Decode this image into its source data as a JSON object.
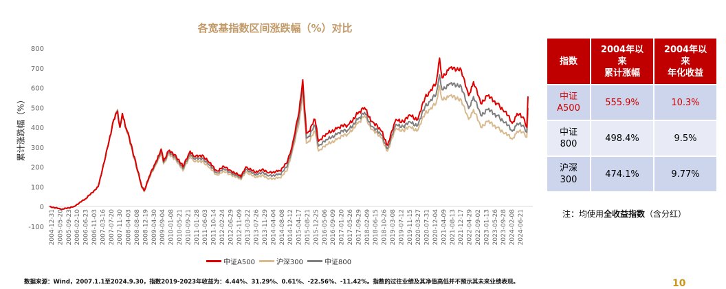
{
  "chart_data": {
    "type": "line",
    "title": "各宽基指数区间涨跌幅（%）对比",
    "ylabel": "累计涨跌幅（%）",
    "xlabel": "",
    "ylim": [
      -100,
      800
    ],
    "yticks": [
      -100,
      0,
      100,
      200,
      300,
      400,
      500,
      600,
      700,
      800
    ],
    "xlim": [
      2004.99,
      2024.75
    ],
    "xtick_labels": [
      "2004-12-31",
      "2005-05-20",
      "2005-09-23",
      "2006-02-10",
      "2006-06-23",
      "2006-11-03",
      "2007-03-16",
      "2007-07-20",
      "2007-11-30",
      "2008-04-03",
      "2008-08-08",
      "2008-12-19",
      "2009-04-30",
      "2009-09-04",
      "2010-01-08",
      "2010-05-21",
      "2010-09-21",
      "2011-01-28",
      "2011-06-03",
      "2011-10-14",
      "2012-02-24",
      "2012-06-29",
      "2012-11-09",
      "2013-03-22",
      "2013-07-26",
      "2013-11-29",
      "2014-04-04",
      "2014-08-08",
      "2014-12-12",
      "2015-04-17",
      "2015-08-21",
      "2015-12-25",
      "2016-05-06",
      "2016-09-09",
      "2017-01-20",
      "2017-05-26",
      "2017-09-29",
      "2018-02-09",
      "2018-06-15",
      "2018-10-26",
      "2019-03-08",
      "2019-07-12",
      "2019-11-15",
      "2020-03-27",
      "2020-07-31",
      "2020-12-04",
      "2021-04-09",
      "2021-08-13",
      "2021-12-17",
      "2022-04-29",
      "2022-09-02",
      "2023-01-13",
      "2023-05-26",
      "2023-09-28",
      "2024-02-08",
      "2024-06-21"
    ],
    "x": [
      2004.99,
      2005.5,
      2006.0,
      2006.5,
      2007.0,
      2007.3,
      2007.45,
      2007.6,
      2007.8,
      2007.9,
      2008.0,
      2008.2,
      2008.5,
      2008.8,
      2008.9,
      2009.1,
      2009.4,
      2009.6,
      2009.7,
      2009.9,
      2010.2,
      2010.5,
      2010.8,
      2011.0,
      2011.3,
      2011.6,
      2011.9,
      2012.2,
      2012.5,
      2012.9,
      2013.1,
      2013.5,
      2013.8,
      2014.0,
      2014.5,
      2014.8,
      2015.0,
      2015.3,
      2015.45,
      2015.6,
      2015.7,
      2015.95,
      2016.1,
      2016.5,
      2016.9,
      2017.3,
      2017.8,
      2018.0,
      2018.3,
      2018.7,
      2018.95,
      2019.3,
      2019.6,
      2019.9,
      2020.2,
      2020.5,
      2020.7,
      2020.95,
      2021.1,
      2021.2,
      2021.5,
      2021.8,
      2021.95,
      2022.3,
      2022.5,
      2022.8,
      2023.05,
      2023.5,
      2023.8,
      2024.1,
      2024.3,
      2024.6,
      2024.7,
      2024.75
    ],
    "series": [
      {
        "name": "中证A500",
        "color": "#e00000",
        "values": [
          0,
          -15,
          0,
          40,
          100,
          250,
          330,
          420,
          480,
          400,
          470,
          380,
          250,
          100,
          80,
          150,
          230,
          290,
          230,
          280,
          260,
          200,
          280,
          250,
          260,
          220,
          180,
          200,
          180,
          150,
          200,
          170,
          190,
          170,
          180,
          220,
          300,
          480,
          640,
          370,
          380,
          440,
          330,
          370,
          400,
          410,
          480,
          500,
          430,
          380,
          310,
          440,
          430,
          460,
          440,
          550,
          580,
          620,
          750,
          650,
          700,
          690,
          700,
          560,
          630,
          520,
          560,
          520,
          480,
          420,
          470,
          440,
          400,
          556
        ]
      },
      {
        "name": "沪深300",
        "color": "#d9b98e",
        "values": [
          0,
          -15,
          0,
          40,
          100,
          250,
          330,
          420,
          490,
          400,
          470,
          370,
          240,
          95,
          75,
          140,
          215,
          270,
          215,
          260,
          240,
          180,
          255,
          225,
          230,
          195,
          160,
          175,
          160,
          135,
          175,
          145,
          160,
          140,
          145,
          180,
          270,
          420,
          570,
          320,
          330,
          380,
          280,
          315,
          345,
          365,
          430,
          460,
          390,
          345,
          280,
          395,
          385,
          400,
          385,
          470,
          490,
          520,
          610,
          540,
          560,
          545,
          545,
          440,
          490,
          400,
          430,
          400,
          370,
          340,
          380,
          370,
          350,
          474
        ]
      },
      {
        "name": "中证800",
        "color": "#7f7f7f",
        "values": [
          0,
          -15,
          0,
          40,
          100,
          250,
          330,
          420,
          485,
          400,
          470,
          375,
          245,
          98,
          78,
          145,
          222,
          280,
          222,
          270,
          250,
          190,
          268,
          238,
          245,
          208,
          170,
          188,
          170,
          142,
          188,
          158,
          175,
          155,
          162,
          200,
          285,
          450,
          610,
          345,
          355,
          410,
          305,
          340,
          372,
          385,
          450,
          475,
          405,
          360,
          292,
          415,
          405,
          425,
          410,
          505,
          530,
          565,
          665,
          590,
          620,
          610,
          615,
          495,
          555,
          460,
          490,
          460,
          425,
          380,
          420,
          400,
          375,
          498
        ]
      }
    ],
    "legend": "bottom",
    "grid": false
  },
  "table": {
    "headers": [
      "指数",
      "2004年以来累计涨幅",
      "2004年以来年化收益"
    ],
    "header_lines": [
      [
        "指数"
      ],
      [
        "2004年以",
        "来",
        "累计涨幅"
      ],
      [
        "2004年以",
        "来",
        "年化收益"
      ]
    ],
    "rows": [
      {
        "name_lines": [
          "中证",
          "A500"
        ],
        "cumulative": "555.9%",
        "annualized": "10.3%"
      },
      {
        "name_lines": [
          "中证",
          "800"
        ],
        "cumulative": "498.4%",
        "annualized": "9.5%"
      },
      {
        "name_lines": [
          "沪深",
          "300"
        ],
        "cumulative": "474.1%",
        "annualized": "9.77%"
      }
    ]
  },
  "note": {
    "prefix": "注：均使用",
    "bold": "全收益指数",
    "suffix": "（含分红）"
  },
  "footer": "数据来源：Wind，2007.1.1至2024.9.30，指数2019-2023年收益为：4.44%、31.29%、0.61%、-22.56%、-11.42%。指数的过往业绩及其净值高低并不预示其未来业绩表现。",
  "page_number": "10"
}
